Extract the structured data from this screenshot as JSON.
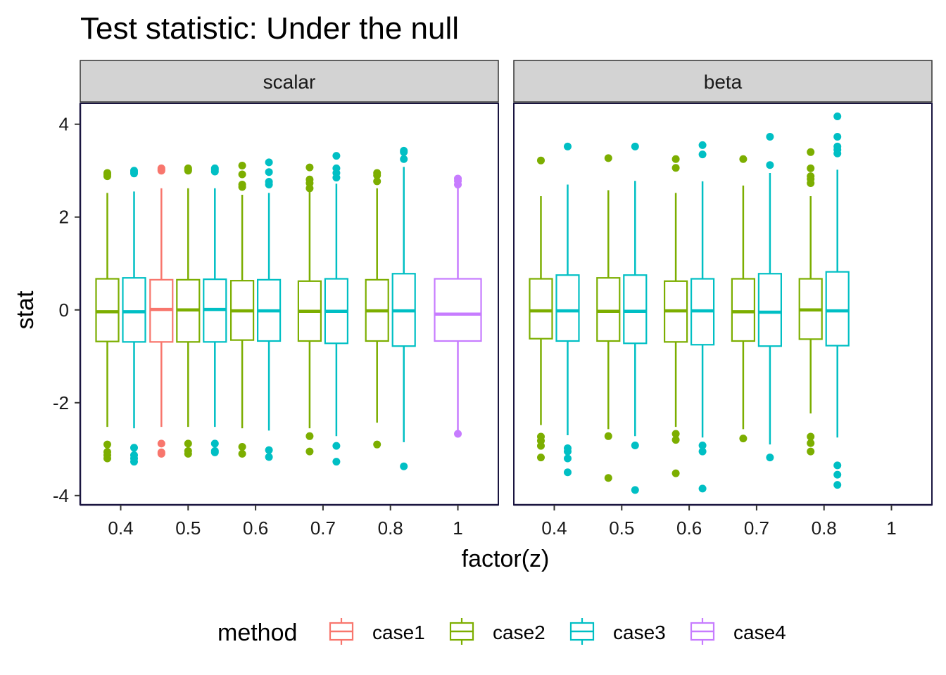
{
  "chart_data": {
    "type": "boxplot",
    "title": "Test statistic: Under the null",
    "xlabel": "factor(z)",
    "ylabel": "stat",
    "ylim": [
      -4.2,
      4.45
    ],
    "yticks": [
      -4,
      -2,
      0,
      2,
      4
    ],
    "ytick_labels": [
      "-4",
      "-2",
      "0",
      "2",
      "4"
    ],
    "categories": [
      "0.4",
      "0.5",
      "0.6",
      "0.7",
      "0.8",
      "1"
    ],
    "legend": {
      "title": "method",
      "position": "bottom",
      "items": [
        {
          "name": "case1",
          "color": "#F8766D"
        },
        {
          "name": "case2",
          "color": "#7CAE00"
        },
        {
          "name": "case3",
          "color": "#00BFC4"
        },
        {
          "name": "case4",
          "color": "#C77CFF"
        }
      ]
    },
    "methods": [
      "case1",
      "case2",
      "case3",
      "case4"
    ],
    "panels": [
      {
        "name": "scalar",
        "boxes": [
          {
            "cat": "0.4",
            "method": "case2",
            "q1": -0.68,
            "median": -0.04,
            "q3": 0.67,
            "low": -2.52,
            "high": 2.52,
            "outliers": [
              2.95,
              2.92,
              2.88,
              -2.9,
              -3.06,
              -3.13,
              -3.2
            ]
          },
          {
            "cat": "0.4",
            "method": "case3",
            "q1": -0.69,
            "median": -0.04,
            "q3": 0.69,
            "low": -2.55,
            "high": 2.55,
            "outliers": [
              3.0,
              2.97,
              2.94,
              -2.97,
              -3.13,
              -3.2,
              -3.27
            ]
          },
          {
            "cat": "0.5",
            "method": "case1",
            "q1": -0.69,
            "median": 0.01,
            "q3": 0.65,
            "low": -2.52,
            "high": 2.62,
            "outliers": [
              3.05,
              3.02,
              3.0,
              -2.88,
              -3.07,
              -3.1
            ]
          },
          {
            "cat": "0.5",
            "method": "case2",
            "q1": -0.69,
            "median": 0.0,
            "q3": 0.65,
            "low": -2.52,
            "high": 2.62,
            "outliers": [
              3.05,
              3.02,
              3.0,
              -2.88,
              -3.04,
              -3.1
            ]
          },
          {
            "cat": "0.5",
            "method": "case3",
            "q1": -0.69,
            "median": 0.01,
            "q3": 0.66,
            "low": -2.52,
            "high": 2.62,
            "outliers": [
              3.05,
              3.02,
              2.98,
              -2.88,
              -3.04,
              -3.07
            ]
          },
          {
            "cat": "0.6",
            "method": "case2",
            "q1": -0.65,
            "median": -0.02,
            "q3": 0.63,
            "low": -2.55,
            "high": 2.48,
            "outliers": [
              3.11,
              2.92,
              2.7,
              2.65,
              -2.95,
              -3.1
            ]
          },
          {
            "cat": "0.6",
            "method": "case3",
            "q1": -0.67,
            "median": -0.02,
            "q3": 0.65,
            "low": -2.6,
            "high": 2.52,
            "outliers": [
              3.18,
              2.97,
              2.76,
              2.7,
              -3.02,
              -3.17
            ]
          },
          {
            "cat": "0.7",
            "method": "case2",
            "q1": -0.67,
            "median": -0.03,
            "q3": 0.62,
            "low": -2.55,
            "high": 2.55,
            "outliers": [
              3.07,
              2.81,
              2.73,
              2.62,
              -2.72,
              -3.05
            ]
          },
          {
            "cat": "0.7",
            "method": "case3",
            "q1": -0.72,
            "median": -0.03,
            "q3": 0.67,
            "low": -2.72,
            "high": 2.72,
            "outliers": [
              3.32,
              3.05,
              2.95,
              2.85,
              -2.93,
              -3.27
            ]
          },
          {
            "cat": "0.8",
            "method": "case2",
            "q1": -0.67,
            "median": -0.02,
            "q3": 0.65,
            "low": -2.43,
            "high": 2.62,
            "outliers": [
              2.95,
              2.9,
              2.77,
              -2.9
            ]
          },
          {
            "cat": "0.8",
            "method": "case3",
            "q1": -0.78,
            "median": -0.02,
            "q3": 0.78,
            "low": -2.85,
            "high": 3.08,
            "outliers": [
              3.43,
              3.4,
              3.25,
              -3.37
            ]
          },
          {
            "cat": "1",
            "method": "case4",
            "q1": -0.67,
            "median": -0.09,
            "q3": 0.67,
            "low": -2.6,
            "high": 2.62,
            "outliers": [
              2.83,
              2.78,
              2.7,
              -2.67
            ]
          }
        ]
      },
      {
        "name": "beta",
        "boxes": [
          {
            "cat": "0.4",
            "method": "case2",
            "q1": -0.62,
            "median": -0.02,
            "q3": 0.67,
            "low": -2.48,
            "high": 2.45,
            "outliers": [
              3.22,
              -2.73,
              -2.82,
              -2.93,
              -3.18
            ]
          },
          {
            "cat": "0.4",
            "method": "case3",
            "q1": -0.67,
            "median": -0.02,
            "q3": 0.75,
            "low": -2.7,
            "high": 2.7,
            "outliers": [
              3.52,
              -2.98,
              -3.05,
              -3.2,
              -3.5
            ]
          },
          {
            "cat": "0.5",
            "method": "case2",
            "q1": -0.67,
            "median": -0.03,
            "q3": 0.69,
            "low": -2.57,
            "high": 2.58,
            "outliers": [
              3.27,
              -2.72,
              -3.62
            ]
          },
          {
            "cat": "0.5",
            "method": "case3",
            "q1": -0.72,
            "median": -0.03,
            "q3": 0.75,
            "low": -2.72,
            "high": 2.78,
            "outliers": [
              3.52,
              -2.92,
              -3.88
            ]
          },
          {
            "cat": "0.6",
            "method": "case2",
            "q1": -0.69,
            "median": -0.02,
            "q3": 0.62,
            "low": -2.52,
            "high": 2.52,
            "outliers": [
              3.25,
              3.06,
              -2.67,
              -2.8,
              -3.52
            ]
          },
          {
            "cat": "0.6",
            "method": "case3",
            "q1": -0.75,
            "median": -0.02,
            "q3": 0.67,
            "low": -2.75,
            "high": 2.77,
            "outliers": [
              3.55,
              3.35,
              -2.92,
              -3.05,
              -3.85
            ]
          },
          {
            "cat": "0.7",
            "method": "case2",
            "q1": -0.67,
            "median": -0.04,
            "q3": 0.67,
            "low": -2.57,
            "high": 2.68,
            "outliers": [
              3.25,
              -2.77
            ]
          },
          {
            "cat": "0.7",
            "method": "case3",
            "q1": -0.78,
            "median": -0.05,
            "q3": 0.78,
            "low": -2.9,
            "high": 2.95,
            "outliers": [
              3.73,
              3.12,
              -3.18
            ]
          },
          {
            "cat": "0.8",
            "method": "case2",
            "q1": -0.63,
            "median": 0.0,
            "q3": 0.67,
            "low": -2.23,
            "high": 2.45,
            "outliers": [
              3.4,
              3.05,
              2.88,
              2.82,
              2.73,
              -2.73,
              -2.87,
              -3.05
            ]
          },
          {
            "cat": "0.8",
            "method": "case3",
            "q1": -0.77,
            "median": -0.02,
            "q3": 0.82,
            "low": -2.75,
            "high": 3.02,
            "outliers": [
              4.17,
              3.73,
              3.52,
              3.45,
              3.37,
              -3.35,
              -3.55,
              -3.77
            ]
          }
        ]
      }
    ]
  }
}
